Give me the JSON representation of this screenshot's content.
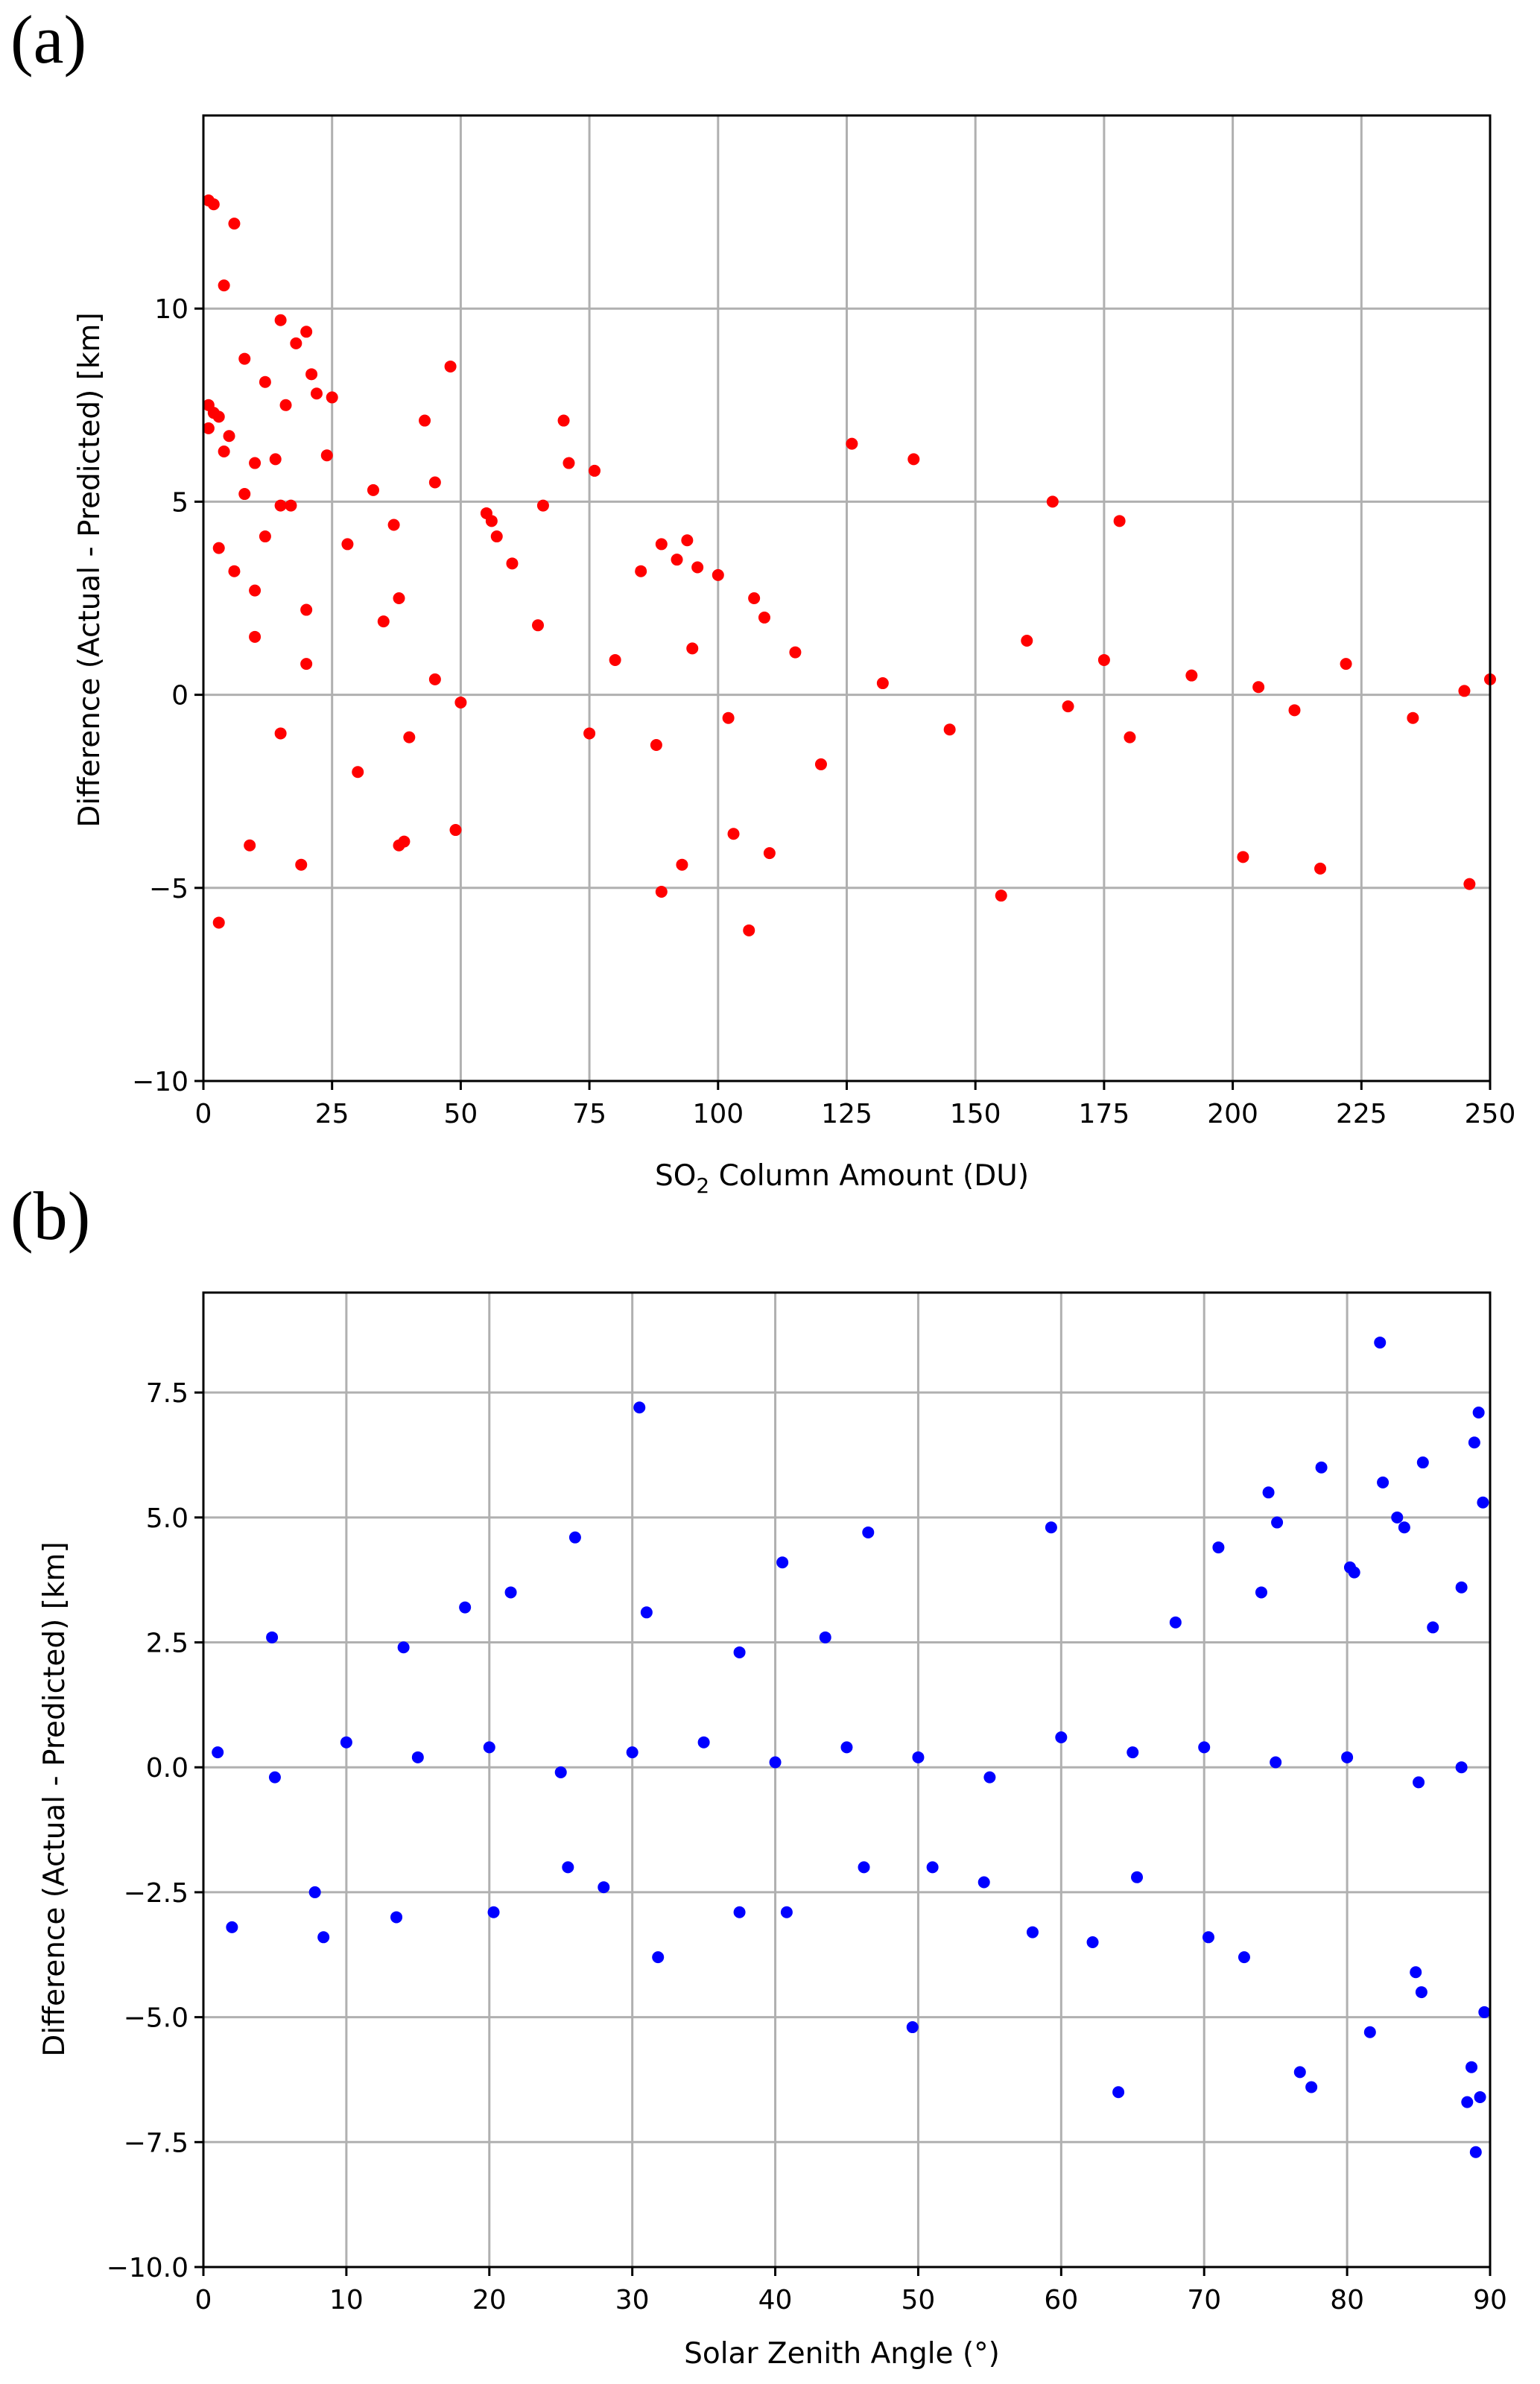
{
  "chart_data": [
    {
      "id": "a",
      "type": "scatter",
      "panel_label": "(a)",
      "title": "",
      "xlabel_main": "SO",
      "xlabel_sub": "2",
      "xlabel_rest": " Column Amount (DU)",
      "ylabel": "Difference (Actual - Predicted)  [km]",
      "xlim": [
        0,
        250
      ],
      "ylim": [
        -10,
        15
      ],
      "xticks": [
        0,
        25,
        50,
        75,
        100,
        125,
        150,
        175,
        200,
        225,
        250
      ],
      "yticks": [
        -10,
        -5,
        0,
        5,
        10
      ],
      "xtick_labels": [
        "0",
        "25",
        "50",
        "75",
        "100",
        "125",
        "150",
        "175",
        "200",
        "225",
        "250"
      ],
      "ytick_labels": [
        "−10",
        "−5",
        "0",
        "5",
        "10"
      ],
      "grid": true,
      "color": "#ff0000",
      "series": [
        {
          "x": [
            1,
            2,
            1,
            2,
            3,
            4,
            5,
            6,
            8,
            10,
            12,
            14,
            15,
            16,
            18,
            20,
            21,
            22,
            25,
            1,
            3,
            4,
            6,
            8,
            10,
            12,
            15,
            17,
            20,
            24,
            28,
            33,
            37,
            38,
            43,
            45,
            48,
            55,
            56,
            57,
            60,
            66,
            70,
            71,
            76,
            85,
            89,
            92,
            94,
            96,
            100,
            107,
            109,
            126,
            138,
            165,
            178,
            3,
            9,
            19,
            38,
            39,
            49,
            89,
            93,
            103,
            106,
            110,
            155,
            202,
            217,
            246,
            10,
            15,
            20,
            30,
            35,
            40,
            45,
            50,
            65,
            75,
            80,
            88,
            95,
            102,
            115,
            120,
            132,
            145,
            160,
            168,
            175,
            180,
            192,
            205,
            212,
            222,
            235,
            245,
            250
          ],
          "y": [
            12.8,
            12.7,
            7.5,
            7.3,
            7.2,
            10.6,
            6.7,
            12.2,
            8.7,
            6.0,
            8.1,
            6.1,
            9.7,
            7.5,
            9.1,
            9.4,
            8.3,
            7.8,
            7.7,
            6.9,
            3.8,
            6.3,
            3.2,
            5.2,
            2.7,
            4.1,
            4.9,
            4.9,
            2.2,
            6.2,
            3.9,
            5.3,
            4.4,
            2.5,
            7.1,
            5.5,
            8.5,
            4.7,
            4.5,
            4.1,
            3.4,
            4.9,
            7.1,
            6.0,
            5.8,
            3.2,
            3.9,
            3.5,
            4.0,
            3.3,
            3.1,
            2.5,
            2.0,
            6.5,
            6.1,
            5.0,
            4.5,
            -5.9,
            -3.9,
            -4.4,
            -3.9,
            -3.8,
            -3.5,
            -5.1,
            -4.4,
            -3.6,
            -6.1,
            -4.1,
            -5.2,
            -4.2,
            -4.5,
            -4.9,
            1.5,
            -1.0,
            0.8,
            -2.0,
            1.9,
            -1.1,
            0.4,
            -0.2,
            1.8,
            -1.0,
            0.9,
            -1.3,
            1.2,
            -0.6,
            1.1,
            -1.8,
            0.3,
            -0.9,
            1.4,
            -0.3,
            0.9,
            -1.1,
            0.5,
            0.2,
            -0.4,
            0.8,
            -0.6,
            0.1,
            0.4
          ]
        }
      ]
    },
    {
      "id": "b",
      "type": "scatter",
      "panel_label": "(b)",
      "title": "",
      "xlabel_main": "Solar Zenith Angle (°)",
      "ylabel": "Difference (Actual - Predicted)  [km]",
      "xlim": [
        0,
        90
      ],
      "ylim": [
        -10,
        9.5
      ],
      "xticks": [
        0,
        10,
        20,
        30,
        40,
        50,
        60,
        70,
        80,
        90
      ],
      "yticks": [
        -10,
        -7.5,
        -5,
        -2.5,
        0,
        2.5,
        5,
        7.5
      ],
      "xtick_labels": [
        "0",
        "10",
        "20",
        "30",
        "40",
        "50",
        "60",
        "70",
        "80",
        "90"
      ],
      "ytick_labels": [
        "−10.0",
        "−7.5",
        "−5.0",
        "−2.5",
        "0.0",
        "2.5",
        "5.0",
        "7.5"
      ],
      "grid": true,
      "color": "#0000ff",
      "series": [
        {
          "x": [
            30.5,
            82.3,
            89.2,
            88.9,
            89.5,
            78.2,
            74.5,
            85.3,
            82.5,
            83.5,
            84.0,
            75.1,
            59.3,
            71.0,
            80.2,
            80.5,
            46.5,
            40.5,
            26.0,
            18.3,
            21.5,
            31.0,
            4.8,
            14.0,
            37.5,
            43.5,
            68.0,
            86.0,
            88.0,
            74.0,
            49.6,
            64.0,
            76.7,
            77.5,
            81.6,
            89.0,
            89.3,
            89.6,
            88.7,
            88.4,
            85.2,
            84.8,
            62.2,
            58.0,
            70.3,
            72.8,
            13.5,
            8.4,
            2.0,
            7.8,
            31.8,
            37.5,
            40.8,
            20.3,
            25.5,
            28.0,
            46.2,
            51.0,
            54.6,
            65.3,
            1.0,
            5.0,
            10.0,
            15.0,
            20.0,
            25.0,
            30.0,
            35.0,
            40.0,
            45.0,
            50.0,
            55.0,
            60.0,
            65.0,
            70.0,
            75.0,
            80.0,
            85.0,
            88.0
          ],
          "y": [
            7.2,
            8.5,
            7.1,
            6.5,
            5.3,
            6.0,
            5.5,
            6.1,
            5.7,
            5.0,
            4.8,
            4.9,
            4.8,
            4.4,
            4.0,
            3.9,
            4.7,
            4.1,
            4.6,
            3.2,
            3.5,
            3.1,
            2.6,
            2.4,
            2.3,
            2.6,
            2.9,
            2.8,
            3.6,
            3.5,
            -5.2,
            -6.5,
            -6.1,
            -6.4,
            -5.3,
            -7.7,
            -6.6,
            -4.9,
            -6.0,
            -6.7,
            -4.5,
            -4.1,
            -3.5,
            -3.3,
            -3.4,
            -3.8,
            -3.0,
            -3.4,
            -3.2,
            -2.5,
            -3.8,
            -2.9,
            -2.9,
            -2.9,
            -2.0,
            -2.4,
            -2.0,
            -2.0,
            -2.3,
            -2.2,
            0.3,
            -0.2,
            0.5,
            0.2,
            0.4,
            -0.1,
            0.3,
            0.5,
            0.1,
            0.4,
            0.2,
            -0.2,
            0.6,
            0.3,
            0.4,
            0.1,
            0.2,
            -0.3,
            0.0
          ]
        }
      ]
    }
  ]
}
